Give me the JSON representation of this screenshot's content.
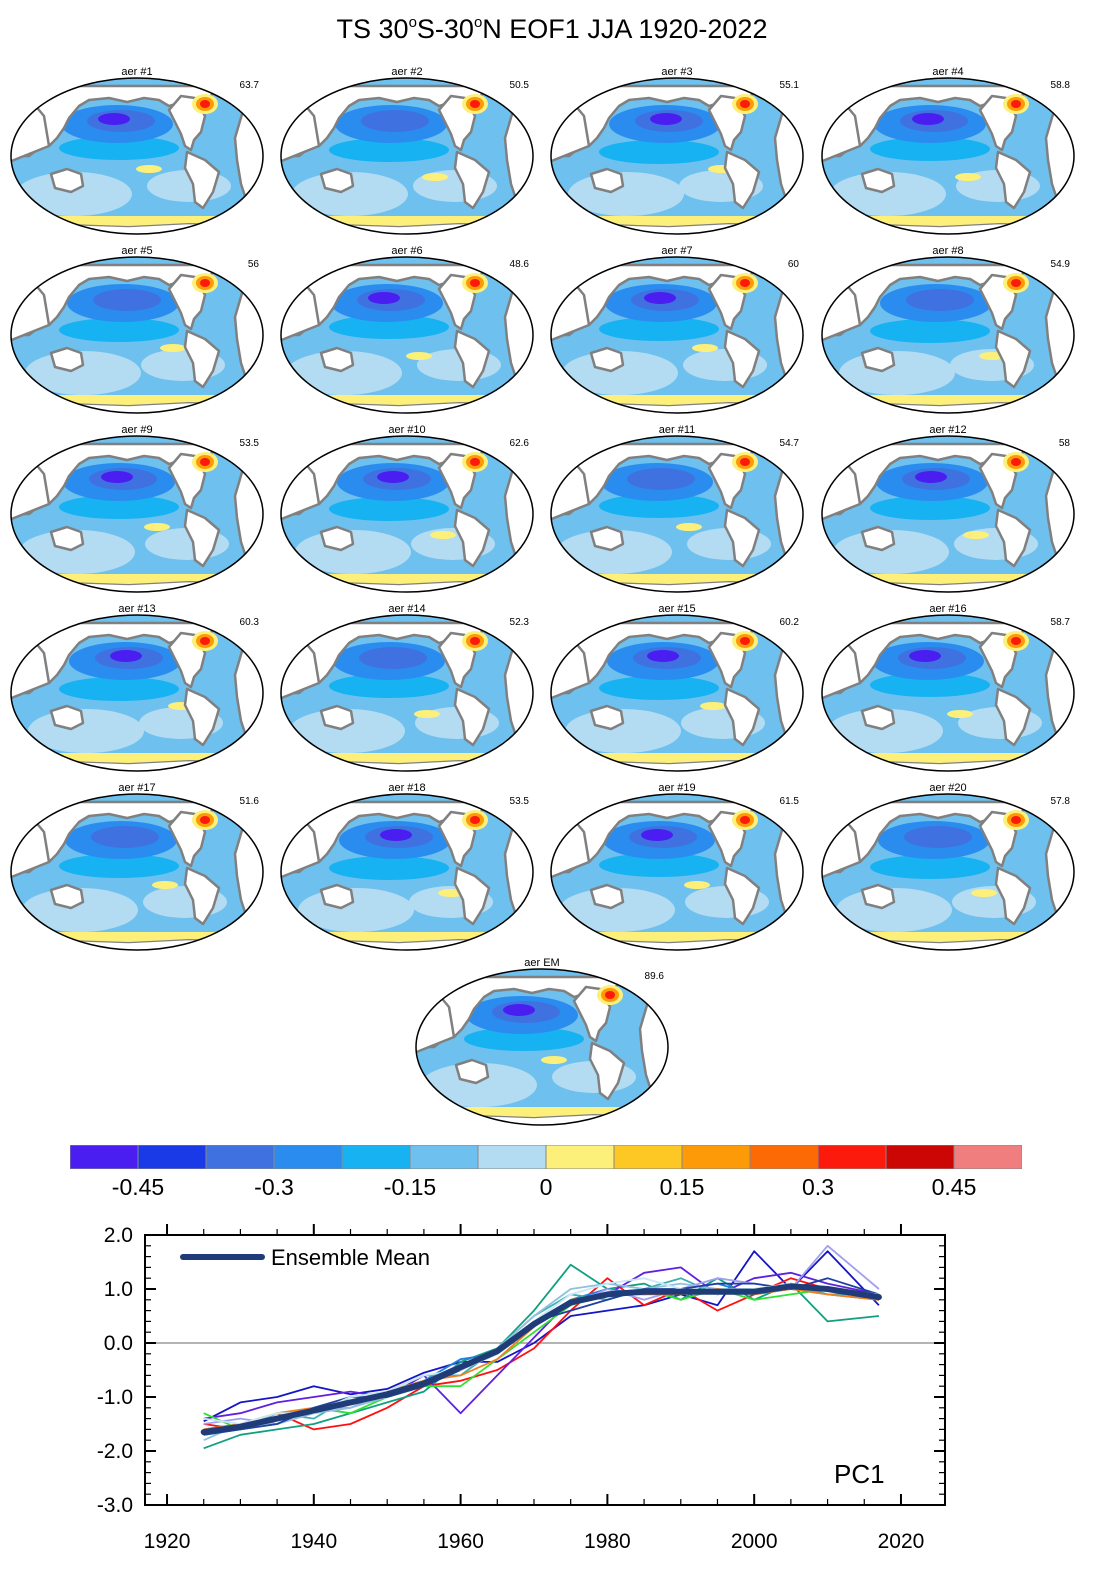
{
  "figure": {
    "title_prefix": "TS 30",
    "title_sup1": "o",
    "title_mid": "S-30",
    "title_sup2": "o",
    "title_suffix": "N EOF1 JJA 1920-2022"
  },
  "panels": [
    {
      "label": "aer #1",
      "pct": "63.7"
    },
    {
      "label": "aer #2",
      "pct": "50.5"
    },
    {
      "label": "aer #3",
      "pct": "55.1"
    },
    {
      "label": "aer #4",
      "pct": "58.8"
    },
    {
      "label": "aer #5",
      "pct": "56"
    },
    {
      "label": "aer #6",
      "pct": "48.6"
    },
    {
      "label": "aer #7",
      "pct": "60"
    },
    {
      "label": "aer #8",
      "pct": "54.9"
    },
    {
      "label": "aer #9",
      "pct": "53.5"
    },
    {
      "label": "aer #10",
      "pct": "62.6"
    },
    {
      "label": "aer #11",
      "pct": "54.7"
    },
    {
      "label": "aer #12",
      "pct": "58"
    },
    {
      "label": "aer #13",
      "pct": "60.3"
    },
    {
      "label": "aer #14",
      "pct": "52.3"
    },
    {
      "label": "aer #15",
      "pct": "60.2"
    },
    {
      "label": "aer #16",
      "pct": "58.7"
    },
    {
      "label": "aer #17",
      "pct": "51.6"
    },
    {
      "label": "aer #18",
      "pct": "53.5"
    },
    {
      "label": "aer #19",
      "pct": "61.5"
    },
    {
      "label": "aer #20",
      "pct": "57.8"
    },
    {
      "label": "aer EM",
      "pct": "89.6"
    }
  ],
  "colorbar": {
    "colors": [
      "#4a1ef0",
      "#1a3ae8",
      "#3f72e0",
      "#2b8cf0",
      "#17b2f2",
      "#6ec0ee",
      "#b3dcf2",
      "#fcf07a",
      "#fdc823",
      "#fd9a08",
      "#fc6a05",
      "#fb1a0b",
      "#cc0505",
      "#f07e7e"
    ],
    "labels": [
      "-0.45",
      "-0.3",
      "-0.15",
      "0",
      "0.15",
      "0.3",
      "0.45"
    ]
  },
  "map_colors": {
    "ocean_base": "#6ec0ee",
    "ocean_light": "#b3dcf2",
    "ocean_mid": "#17b2f2",
    "ocean_strong": "#2b8cf0",
    "ocean_deep": "#3f72e0",
    "ocean_deepest": "#4a1ef0",
    "warm_yellow": "#fcf07a",
    "warm_orange": "#fd9a08",
    "warm_red": "#fb1a0b",
    "land": "#ffffff",
    "coast": "#808080"
  },
  "chart_data": {
    "type": "line",
    "xlim": [
      1917,
      2026
    ],
    "ylim": [
      -3.0,
      2.0
    ],
    "xticks": [
      "1920",
      "1940",
      "1960",
      "1980",
      "2000",
      "2020"
    ],
    "yticks": [
      "2.0",
      "1.0",
      "0.0",
      "-1.0",
      "-2.0",
      "-3.0"
    ],
    "legend": "Ensemble Mean",
    "legend_placement": "top-left",
    "annotation": "PC1",
    "ensemble_mean": {
      "color": "#203c78",
      "x": [
        1925,
        1930,
        1935,
        1940,
        1945,
        1950,
        1955,
        1960,
        1965,
        1970,
        1975,
        1980,
        1985,
        1990,
        1995,
        2000,
        2005,
        2010,
        2017
      ],
      "y": [
        -1.65,
        -1.55,
        -1.4,
        -1.25,
        -1.1,
        -0.95,
        -0.75,
        -0.45,
        -0.15,
        0.35,
        0.75,
        0.9,
        0.95,
        0.95,
        0.95,
        0.95,
        1.05,
        1.0,
        0.85
      ]
    },
    "members": [
      {
        "color": "#1515c8",
        "y": [
          -1.45,
          -1.1,
          -1.0,
          -0.8,
          -0.95,
          -0.85,
          -0.55,
          -0.35,
          -0.35,
          0.0,
          0.5,
          0.6,
          0.7,
          0.9,
          0.7,
          1.7,
          1.0,
          1.7,
          0.7
        ]
      },
      {
        "color": "#ff1010",
        "y": [
          -1.5,
          -1.6,
          -1.3,
          -1.6,
          -1.5,
          -1.2,
          -0.8,
          -0.7,
          -0.5,
          -0.1,
          0.6,
          1.2,
          0.7,
          1.0,
          0.6,
          0.9,
          1.2,
          1.0,
          0.8
        ]
      },
      {
        "color": "#10a080",
        "y": [
          -1.95,
          -1.7,
          -1.6,
          -1.5,
          -1.3,
          -1.1,
          -0.9,
          -0.35,
          -0.1,
          0.6,
          1.45,
          1.0,
          1.1,
          0.8,
          1.2,
          0.8,
          1.1,
          0.4,
          0.5
        ]
      },
      {
        "color": "#6020e0",
        "y": [
          -1.4,
          -1.3,
          -1.1,
          -1.0,
          -0.9,
          -1.0,
          -0.6,
          -1.3,
          -0.6,
          0.1,
          0.8,
          0.9,
          1.3,
          1.4,
          0.9,
          1.2,
          1.3,
          1.1,
          0.9
        ]
      },
      {
        "color": "#2080e0",
        "y": [
          -1.6,
          -1.5,
          -1.4,
          -1.3,
          -1.1,
          -0.9,
          -0.7,
          -0.3,
          -0.2,
          0.3,
          0.8,
          1.0,
          0.9,
          1.0,
          1.1,
          0.9,
          1.0,
          0.9,
          0.8
        ]
      },
      {
        "color": "#30e030",
        "y": [
          -1.3,
          -1.6,
          -1.5,
          -1.2,
          -1.3,
          -1.0,
          -0.8,
          -0.8,
          -0.3,
          0.2,
          0.7,
          0.9,
          1.0,
          0.8,
          1.0,
          0.8,
          0.9,
          1.0,
          0.8
        ]
      },
      {
        "color": "#40b0b0",
        "y": [
          -1.7,
          -1.6,
          -1.3,
          -1.4,
          -1.0,
          -0.9,
          -0.6,
          -0.6,
          -0.1,
          0.5,
          0.9,
          0.8,
          1.0,
          1.2,
          0.9,
          1.0,
          1.1,
          0.9,
          0.9
        ]
      },
      {
        "color": "#a0a0f0",
        "y": [
          -1.5,
          -1.4,
          -1.5,
          -1.2,
          -1.2,
          -0.9,
          -0.7,
          -0.4,
          -0.2,
          0.4,
          0.7,
          1.0,
          0.8,
          1.0,
          1.2,
          1.1,
          1.0,
          1.8,
          1.0
        ]
      },
      {
        "color": "#90c0e0",
        "y": [
          -1.8,
          -1.5,
          -1.5,
          -1.3,
          -1.2,
          -1.0,
          -0.7,
          -0.5,
          -0.1,
          0.5,
          1.0,
          1.1,
          1.0,
          1.1,
          1.0,
          1.0,
          1.0,
          1.0,
          0.8
        ]
      },
      {
        "color": "#f08020",
        "y": [
          -1.6,
          -1.5,
          -1.3,
          -1.2,
          -1.1,
          -0.9,
          -0.7,
          -0.6,
          -0.3,
          0.3,
          0.8,
          0.9,
          0.9,
          0.9,
          1.0,
          0.9,
          1.0,
          0.9,
          0.8
        ]
      },
      {
        "color": "#2040a0",
        "y": [
          -1.7,
          -1.6,
          -1.5,
          -1.2,
          -1.0,
          -1.0,
          -0.8,
          -0.5,
          -0.2,
          0.4,
          0.6,
          0.8,
          1.0,
          1.0,
          1.1,
          1.1,
          1.0,
          1.2,
          0.9
        ]
      },
      {
        "color": "#c8e8f8",
        "y": [
          -1.4,
          -1.5,
          -1.3,
          -1.3,
          -1.0,
          -0.9,
          -0.6,
          -0.5,
          -0.2,
          0.4,
          0.9,
          1.1,
          1.2,
          1.0,
          0.9,
          1.0,
          1.1,
          1.0,
          0.9
        ]
      }
    ]
  }
}
